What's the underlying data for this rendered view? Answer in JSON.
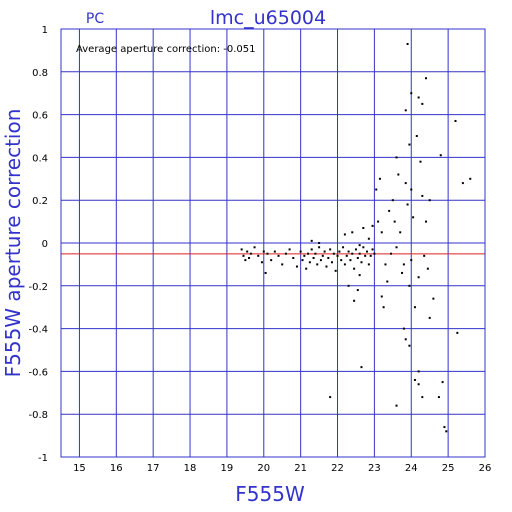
{
  "chart_data": {
    "type": "scatter",
    "title": "lmc_u65004",
    "camera_label": "PC",
    "annotation": "Average aperture correction: -0.051",
    "xlabel": "F555W",
    "ylabel": "F555W aperture correction",
    "xlim": [
      14.5,
      26
    ],
    "ylim": [
      -1,
      1
    ],
    "xticks": [
      15,
      16,
      17,
      18,
      19,
      20,
      21,
      22,
      23,
      24,
      25,
      26
    ],
    "yticks": [
      -1,
      -0.8,
      -0.6,
      -0.4,
      -0.2,
      0,
      0.2,
      0.4,
      0.6,
      0.8,
      1
    ],
    "xtick_labels": [
      "15",
      "16",
      "17",
      "18",
      "19",
      "20",
      "21",
      "22",
      "23",
      "24",
      "25",
      "26"
    ],
    "ytick_labels": [
      "-1",
      "-0.8",
      "-0.6",
      "-0.4",
      "-0.2",
      "0",
      "0.2",
      "0.4",
      "0.6",
      "0.8",
      "1"
    ],
    "grid": true,
    "reference_line": {
      "y": -0.051,
      "color": "#dd2222"
    },
    "colors": {
      "axes": "#3333cc",
      "grid": "#3333cc",
      "points": "#000000",
      "title": "#3333cc"
    },
    "points": [
      [
        19.4,
        -0.03
      ],
      [
        19.45,
        -0.06
      ],
      [
        19.5,
        -0.08
      ],
      [
        19.55,
        -0.04
      ],
      [
        19.6,
        -0.07
      ],
      [
        19.65,
        -0.05
      ],
      [
        19.75,
        -0.02
      ],
      [
        19.85,
        -0.06
      ],
      [
        19.95,
        -0.09
      ],
      [
        20.0,
        -0.04
      ],
      [
        20.05,
        -0.14
      ],
      [
        20.1,
        -0.05
      ],
      [
        20.2,
        -0.08
      ],
      [
        20.3,
        -0.04
      ],
      [
        20.4,
        -0.06
      ],
      [
        20.5,
        -0.1
      ],
      [
        20.6,
        -0.05
      ],
      [
        20.7,
        -0.03
      ],
      [
        20.8,
        -0.07
      ],
      [
        20.9,
        -0.11
      ],
      [
        21.0,
        -0.04
      ],
      [
        21.05,
        -0.08
      ],
      [
        21.1,
        -0.06
      ],
      [
        21.15,
        -0.12
      ],
      [
        21.2,
        -0.05
      ],
      [
        21.25,
        -0.09
      ],
      [
        21.3,
        -0.03
      ],
      [
        21.35,
        -0.07
      ],
      [
        21.4,
        -0.05
      ],
      [
        21.45,
        -0.1
      ],
      [
        21.5,
        -0.02
      ],
      [
        21.55,
        -0.08
      ],
      [
        21.6,
        -0.06
      ],
      [
        21.65,
        -0.04
      ],
      [
        21.7,
        -0.11
      ],
      [
        21.75,
        -0.07
      ],
      [
        21.8,
        -0.03
      ],
      [
        21.85,
        -0.09
      ],
      [
        21.9,
        -0.05
      ],
      [
        21.95,
        -0.13
      ],
      [
        22.0,
        -0.06
      ],
      [
        22.05,
        -0.04
      ],
      [
        22.1,
        -0.08
      ],
      [
        22.15,
        -0.02
      ],
      [
        22.2,
        -0.1
      ],
      [
        22.25,
        -0.06
      ],
      [
        22.3,
        -0.04
      ],
      [
        22.35,
        -0.08
      ],
      [
        22.4,
        -0.05
      ],
      [
        22.45,
        -0.12
      ],
      [
        22.5,
        -0.03
      ],
      [
        22.55,
        -0.07
      ],
      [
        22.6,
        -0.05
      ],
      [
        22.65,
        -0.09
      ],
      [
        22.7,
        -0.02
      ],
      [
        22.75,
        -0.06
      ],
      [
        22.8,
        -0.04
      ],
      [
        22.85,
        -0.1
      ],
      [
        22.9,
        -0.06
      ],
      [
        22.95,
        -0.03
      ],
      [
        21.3,
        0.01
      ],
      [
        21.5,
        0.0
      ],
      [
        22.2,
        0.04
      ],
      [
        22.4,
        0.05
      ],
      [
        22.6,
        -0.01
      ],
      [
        22.7,
        0.07
      ],
      [
        22.85,
        0.02
      ],
      [
        22.95,
        0.08
      ],
      [
        22.3,
        -0.2
      ],
      [
        22.45,
        -0.27
      ],
      [
        22.55,
        -0.22
      ],
      [
        22.6,
        -0.15
      ],
      [
        22.65,
        -0.58
      ],
      [
        21.8,
        -0.72
      ],
      [
        23.0,
        -0.05
      ],
      [
        23.05,
        0.25
      ],
      [
        23.1,
        0.1
      ],
      [
        23.15,
        0.3
      ],
      [
        23.2,
        0.05
      ],
      [
        23.2,
        -0.25
      ],
      [
        23.25,
        -0.3
      ],
      [
        23.3,
        -0.1
      ],
      [
        23.35,
        -0.18
      ],
      [
        23.4,
        0.15
      ],
      [
        23.45,
        -0.05
      ],
      [
        23.5,
        0.2
      ],
      [
        23.55,
        0.1
      ],
      [
        23.6,
        -0.02
      ],
      [
        23.6,
        0.4
      ],
      [
        23.65,
        0.32
      ],
      [
        23.7,
        0.05
      ],
      [
        23.75,
        -0.14
      ],
      [
        23.8,
        -0.1
      ],
      [
        23.85,
        0.28
      ],
      [
        23.9,
        0.18
      ],
      [
        23.95,
        -0.2
      ],
      [
        24.0,
        -0.08
      ],
      [
        24.0,
        0.25
      ],
      [
        24.05,
        0.12
      ],
      [
        24.1,
        -0.3
      ],
      [
        24.15,
        0.5
      ],
      [
        24.2,
        -0.16
      ],
      [
        24.25,
        0.38
      ],
      [
        24.3,
        0.22
      ],
      [
        24.35,
        -0.06
      ],
      [
        24.4,
        0.1
      ],
      [
        24.45,
        -0.12
      ],
      [
        24.5,
        -0.35
      ],
      [
        24.5,
        0.2
      ],
      [
        23.8,
        -0.4
      ],
      [
        23.85,
        -0.45
      ],
      [
        23.95,
        -0.48
      ],
      [
        24.2,
        -0.6
      ],
      [
        24.3,
        -0.72
      ],
      [
        23.6,
        -0.76
      ],
      [
        23.9,
        0.93
      ],
      [
        24.0,
        0.7
      ],
      [
        24.2,
        0.68
      ],
      [
        24.4,
        0.77
      ],
      [
        24.3,
        0.65
      ],
      [
        23.85,
        0.62
      ],
      [
        23.95,
        0.46
      ],
      [
        24.8,
        0.41
      ],
      [
        25.2,
        0.57
      ],
      [
        25.4,
        0.28
      ],
      [
        25.6,
        0.3
      ],
      [
        24.6,
        -0.26
      ],
      [
        24.75,
        -0.72
      ],
      [
        24.85,
        -0.65
      ],
      [
        24.9,
        -0.86
      ],
      [
        24.95,
        -0.88
      ],
      [
        25.25,
        -0.42
      ],
      [
        24.2,
        -0.66
      ],
      [
        24.1,
        -0.64
      ]
    ]
  }
}
